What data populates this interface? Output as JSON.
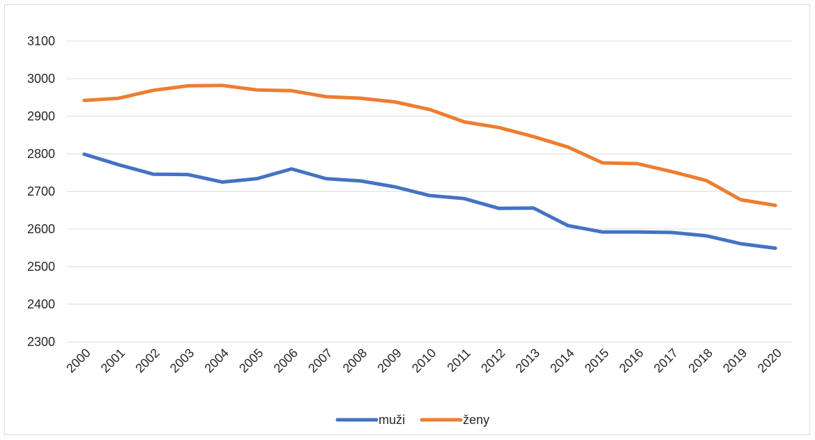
{
  "chart_data": {
    "type": "line",
    "title": "",
    "xlabel": "",
    "ylabel": "",
    "ylim": [
      2300,
      3100
    ],
    "yticks": [
      2300,
      2400,
      2500,
      2600,
      2700,
      2800,
      2900,
      3000,
      3100
    ],
    "grid": true,
    "legend": "bottom-center",
    "categories": [
      "2000",
      "2001",
      "2002",
      "2003",
      "2004",
      "2005",
      "2006",
      "2007",
      "2008",
      "2009",
      "2010",
      "2011",
      "2012",
      "2013",
      "2014",
      "2015",
      "2016",
      "2017",
      "2018",
      "2019",
      "2020"
    ],
    "series": [
      {
        "name": "muži",
        "color": "#4472c4",
        "values": [
          2799,
          2771,
          2746,
          2745,
          2725,
          2734,
          2760,
          2734,
          2728,
          2712,
          2689,
          2681,
          2655,
          2656,
          2609,
          2592,
          2592,
          2591,
          2582,
          2561,
          2549
        ]
      },
      {
        "name": "ženy",
        "color": "#ed7d31",
        "values": [
          2942,
          2948,
          2969,
          2981,
          2982,
          2970,
          2968,
          2952,
          2948,
          2938,
          2918,
          2885,
          2870,
          2846,
          2818,
          2776,
          2774,
          2753,
          2729,
          2678,
          2663
        ]
      }
    ]
  }
}
